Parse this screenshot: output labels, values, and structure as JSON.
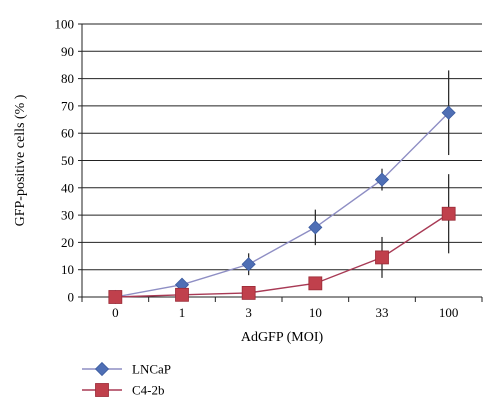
{
  "chart_data": {
    "type": "line",
    "xlabel": "AdGFP (MOI)",
    "ylabel": "GFP-positive cells (% )",
    "categories": [
      "0",
      "1",
      "3",
      "10",
      "33",
      "100"
    ],
    "ylim": [
      0,
      100
    ],
    "yticks": [
      0,
      10,
      20,
      30,
      40,
      50,
      60,
      70,
      80,
      90,
      100
    ],
    "grid": "horizontal",
    "legend_position": "bottom-left",
    "series": [
      {
        "name": "LNCaP",
        "color": "#4f6fb5",
        "line_color": "#8e8ec4",
        "marker": "diamond",
        "values": [
          0,
          4.5,
          12,
          25.5,
          43,
          67.5
        ],
        "error": [
          0,
          0.5,
          4,
          6.5,
          4,
          15.5
        ]
      },
      {
        "name": "C4-2b",
        "color": "#c0404c",
        "line_color": "#a83a55",
        "marker": "square",
        "values": [
          0,
          0.8,
          1.5,
          5,
          14.5,
          30.5
        ],
        "error": [
          0,
          0,
          0,
          0,
          7.5,
          14.5
        ]
      }
    ]
  }
}
